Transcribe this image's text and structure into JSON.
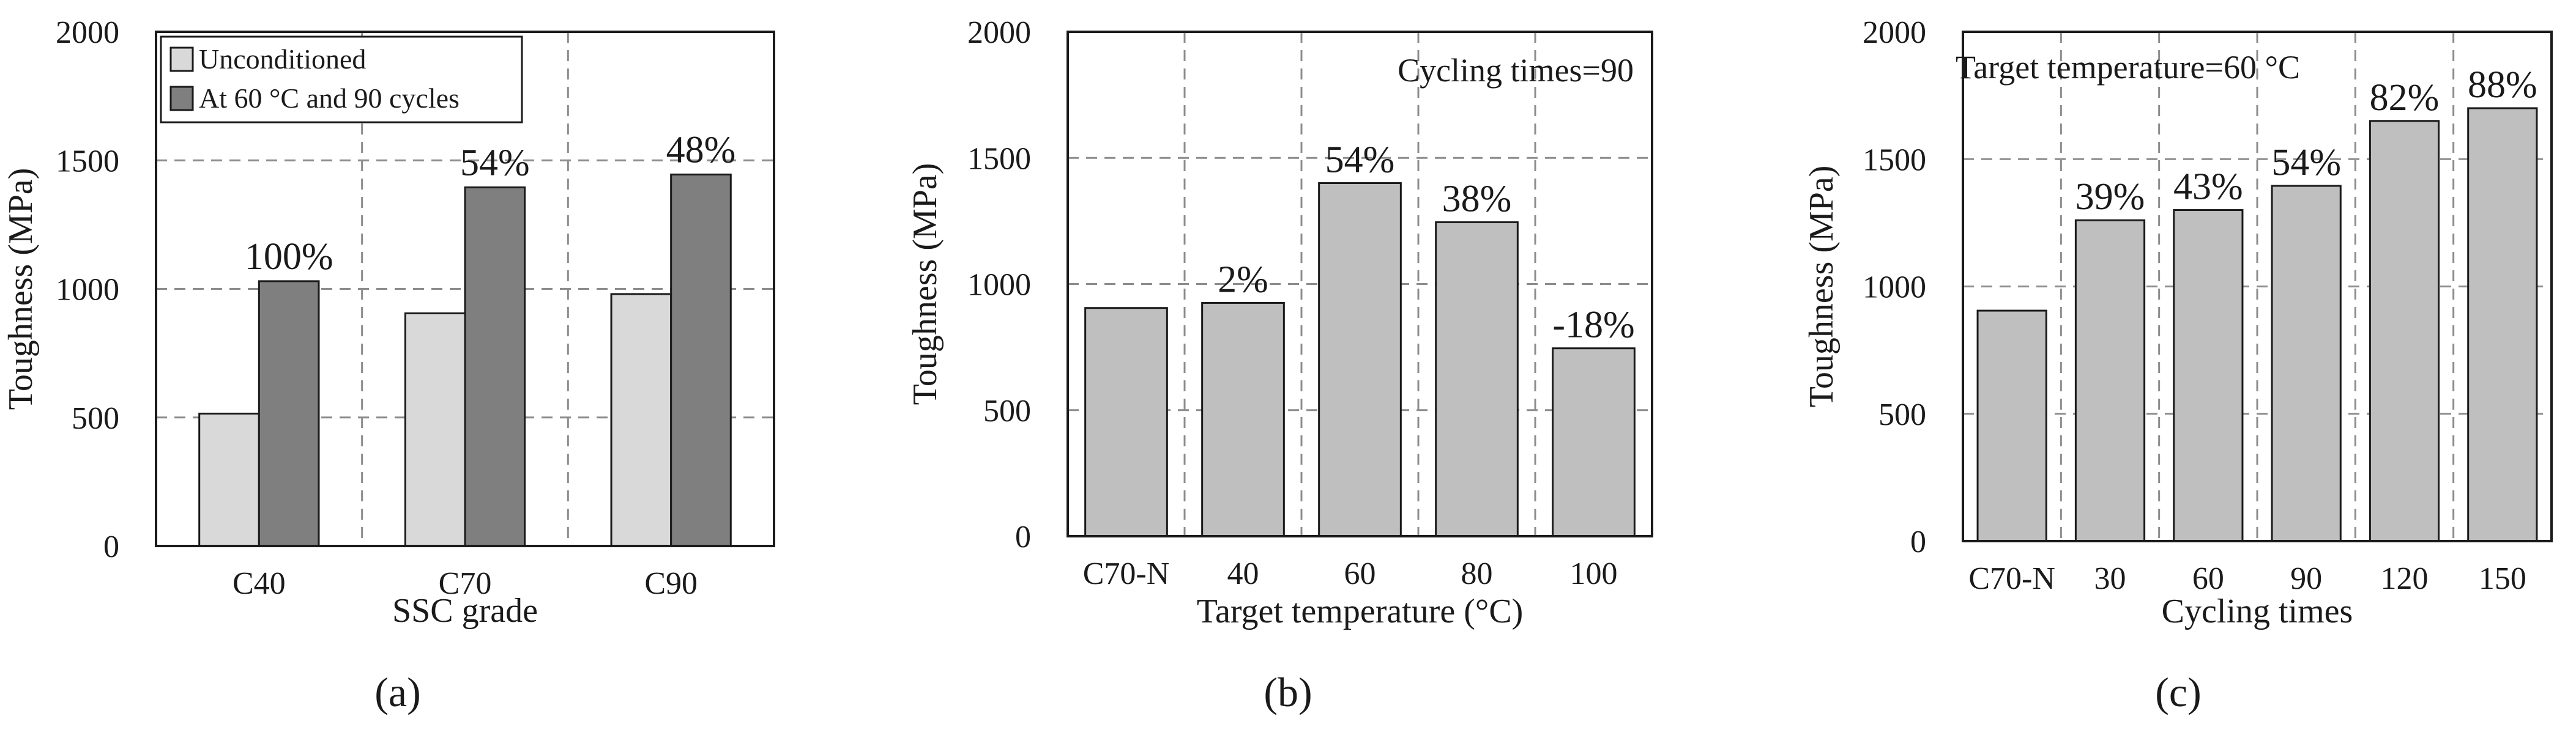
{
  "chart_data": [
    {
      "type": "bar",
      "panel_label": "(a)",
      "title": "",
      "xlabel": "SSC grade",
      "ylabel": "Toughness (MPa)",
      "ylim": [
        0,
        2000
      ],
      "yticks": [
        "0",
        "500",
        "1000",
        "1500",
        "2000"
      ],
      "categories": [
        "C40",
        "C70",
        "C90"
      ],
      "series": [
        {
          "name": "Unconditioned",
          "values": [
            515,
            905,
            980
          ],
          "color": "#d9d9d9"
        },
        {
          "name": "At 60 °C and 90 cycles",
          "values": [
            1030,
            1395,
            1445
          ],
          "color": "#7f7f7f"
        }
      ],
      "data_labels": [
        "100%",
        "54%",
        "48%"
      ],
      "legend": "top-left",
      "grid": true
    },
    {
      "type": "bar",
      "panel_label": "(b)",
      "title": "",
      "annotation": "Cycling times=90",
      "xlabel": "Target temperature (°C)",
      "ylabel": "Toughness (MPa)",
      "ylim": [
        0,
        2000
      ],
      "yticks": [
        "0",
        "500",
        "1000",
        "1500",
        "2000"
      ],
      "categories": [
        "C70-N",
        "40",
        "60",
        "80",
        "100"
      ],
      "values": [
        905,
        925,
        1400,
        1245,
        745
      ],
      "data_labels": [
        "",
        "2%",
        "54%",
        "38%",
        "-18%"
      ],
      "color": "#bfbfbf",
      "grid": true
    },
    {
      "type": "bar",
      "panel_label": "(c)",
      "title": "",
      "annotation": "Target temperature=60 °C",
      "xlabel": "Cycling times",
      "ylabel": "Toughness (MPa)",
      "ylim": [
        0,
        2000
      ],
      "yticks": [
        "0",
        "500",
        "1000",
        "1500",
        "2000"
      ],
      "categories": [
        "C70-N",
        "30",
        "60",
        "90",
        "120",
        "150"
      ],
      "values": [
        905,
        1260,
        1300,
        1395,
        1650,
        1700
      ],
      "data_labels": [
        "",
        "39%",
        "43%",
        "54%",
        "82%",
        "88%"
      ],
      "color": "#bfbfbf",
      "grid": true
    }
  ]
}
